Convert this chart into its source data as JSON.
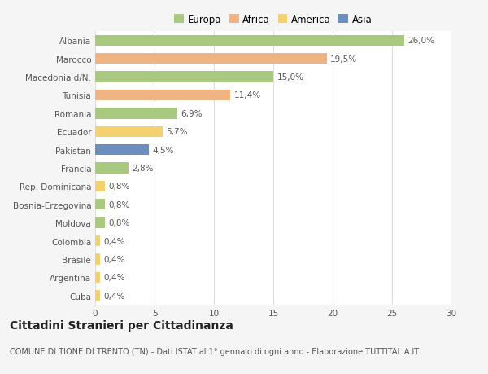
{
  "categories": [
    "Albania",
    "Marocco",
    "Macedonia d/N.",
    "Tunisia",
    "Romania",
    "Ecuador",
    "Pakistan",
    "Francia",
    "Rep. Dominicana",
    "Bosnia-Erzegovina",
    "Moldova",
    "Colombia",
    "Brasile",
    "Argentina",
    "Cuba"
  ],
  "values": [
    26.0,
    19.5,
    15.0,
    11.4,
    6.9,
    5.7,
    4.5,
    2.8,
    0.8,
    0.8,
    0.8,
    0.4,
    0.4,
    0.4,
    0.4
  ],
  "labels": [
    "26,0%",
    "19,5%",
    "15,0%",
    "11,4%",
    "6,9%",
    "5,7%",
    "4,5%",
    "2,8%",
    "0,8%",
    "0,8%",
    "0,8%",
    "0,4%",
    "0,4%",
    "0,4%",
    "0,4%"
  ],
  "colors": [
    "#a8c97f",
    "#f0b482",
    "#a8c97f",
    "#f0b482",
    "#a8c97f",
    "#f5d06e",
    "#6b8ebf",
    "#a8c97f",
    "#f5d06e",
    "#a8c97f",
    "#a8c97f",
    "#f5d06e",
    "#f5d06e",
    "#f5d06e",
    "#f5d06e"
  ],
  "legend_labels": [
    "Europa",
    "Africa",
    "America",
    "Asia"
  ],
  "legend_colors": [
    "#a8c97f",
    "#f0b482",
    "#f5d06e",
    "#6b8ebf"
  ],
  "title": "Cittadini Stranieri per Cittadinanza",
  "subtitle": "COMUNE DI TIONE DI TRENTO (TN) - Dati ISTAT al 1° gennaio di ogni anno - Elaborazione TUTTITALIA.IT",
  "xlim": [
    0,
    30
  ],
  "xticks": [
    0,
    5,
    10,
    15,
    20,
    25,
    30
  ],
  "background_color": "#f5f5f5",
  "plot_background": "#ffffff",
  "grid_color": "#dddddd",
  "title_fontsize": 10,
  "subtitle_fontsize": 7,
  "label_fontsize": 7.5,
  "tick_fontsize": 7.5,
  "legend_fontsize": 8.5,
  "bar_height": 0.6
}
